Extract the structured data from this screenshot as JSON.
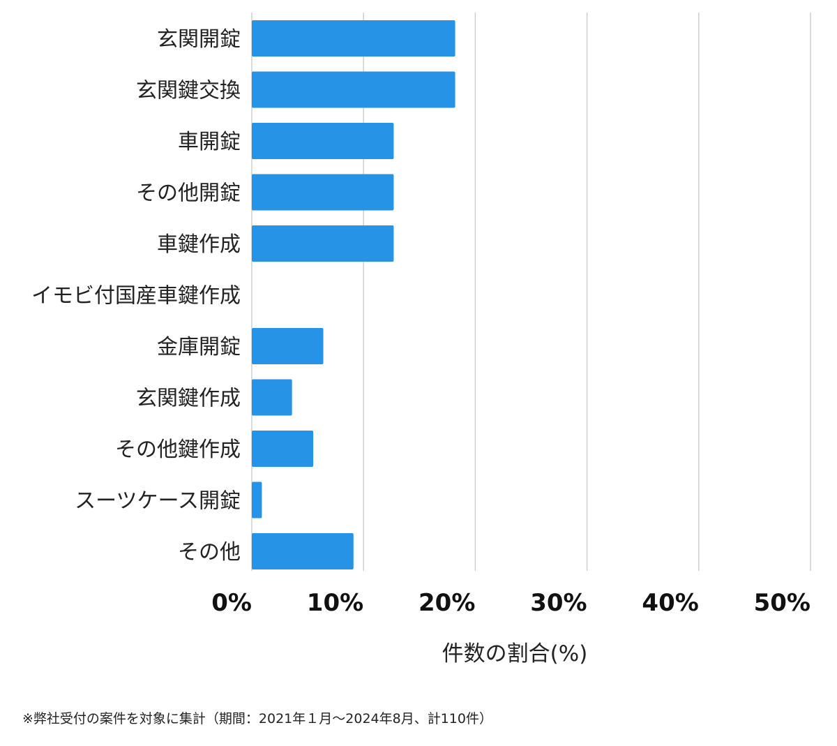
{
  "chart_data": {
    "type": "bar",
    "orientation": "horizontal",
    "categories": [
      "玄関開錠",
      "玄関鍵交換",
      "車開錠",
      "その他開錠",
      "車鍵作成",
      "イモビ付国産車鍵作成",
      "金庫開錠",
      "玄関鍵作成",
      "その他鍵作成",
      "スーツケース開錠",
      "その他"
    ],
    "values": [
      18.2,
      18.2,
      12.7,
      12.7,
      12.7,
      0,
      6.4,
      3.6,
      5.5,
      0.9,
      9.1
    ],
    "xlim": [
      0,
      50
    ],
    "xticks": [
      0,
      10,
      20,
      30,
      40,
      50
    ],
    "xtick_labels": [
      "0%",
      "10%",
      "20%",
      "30%",
      "40%",
      "50%"
    ],
    "xlabel": "件数の割合(%)",
    "grid": true,
    "bar_color": "#2693e6",
    "grid_color": "#cfcfcf"
  },
  "footnote": "※弊社受付の案件を対象に集計（期間：2021年１月～2024年8月、計110件）"
}
